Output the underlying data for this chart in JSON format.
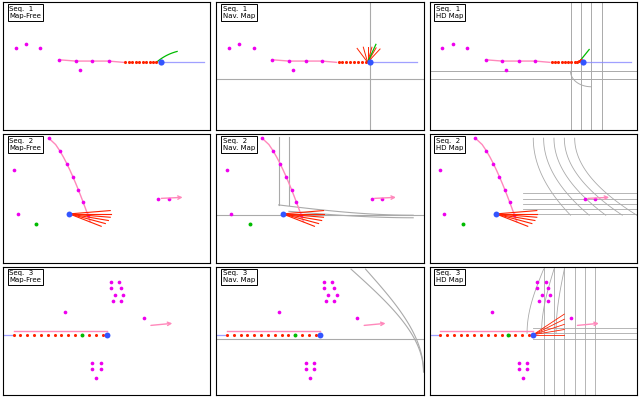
{
  "fig_width": 6.4,
  "fig_height": 3.97,
  "dpi": 100,
  "labels": [
    [
      "Seq.  1\nMap-Free",
      "Seq.  1\nNav. Map",
      "Seq.  1\nHD Map"
    ],
    [
      "Seq.  2\nMap-Free",
      "Seq.  2\nNav. Map",
      "Seq.  2\nHD Map"
    ],
    [
      "Seq.  3\nMap-Free",
      "Seq.  3\nNav. Map",
      "Seq.  3\nHD Map"
    ]
  ],
  "road_color": "#aaaaaa",
  "magenta": "#ee00ee",
  "blue": "#3355ff",
  "red": "#ff2200",
  "green": "#00bb00",
  "pink": "#ff88bb",
  "light_blue": "#8888ff"
}
